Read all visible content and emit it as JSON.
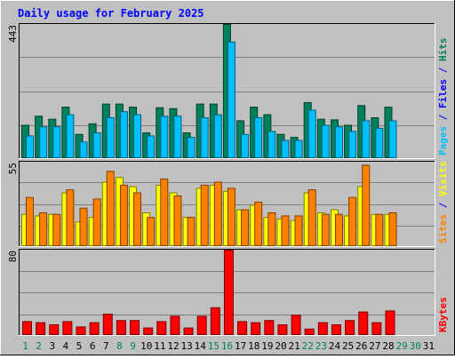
{
  "chart_data": [
    {
      "type": "bar",
      "title": "Daily usage for February 2025",
      "categories": [
        "1",
        "2",
        "3",
        "4",
        "5",
        "6",
        "7",
        "8",
        "9",
        "10",
        "11",
        "12",
        "13",
        "14",
        "15",
        "16",
        "17",
        "18",
        "19",
        "20",
        "21",
        "22",
        "23",
        "24",
        "25",
        "26",
        "27",
        "28",
        "29",
        "30",
        "31"
      ],
      "weekend_days": [
        "1",
        "2",
        "8",
        "9",
        "15",
        "16",
        "22",
        "23",
        "29",
        "30"
      ],
      "ylabel_parts": [
        "Pages",
        "Files",
        "Hits"
      ],
      "y_tick_label": "443",
      "ylim": [
        0,
        443
      ],
      "series": [
        {
          "name": "Hits",
          "values": [
            110,
            140,
            130,
            170,
            80,
            115,
            180,
            180,
            170,
            85,
            168,
            165,
            85,
            180,
            180,
            443,
            125,
            170,
            145,
            80,
            70,
            185,
            130,
            128,
            110,
            175,
            135,
            170,
            0,
            0,
            0
          ]
        },
        {
          "name": "Files",
          "values": [
            75,
            105,
            105,
            145,
            55,
            85,
            135,
            155,
            145,
            75,
            140,
            140,
            70,
            135,
            145,
            385,
            80,
            135,
            90,
            60,
            60,
            160,
            110,
            105,
            90,
            125,
            100,
            125,
            0,
            0,
            0
          ]
        },
        {
          "name": "Pages",
          "values": [
            0,
            0,
            0,
            0,
            0,
            0,
            0,
            0,
            0,
            0,
            0,
            0,
            0,
            0,
            0,
            0,
            0,
            0,
            0,
            0,
            0,
            0,
            0,
            0,
            0,
            0,
            0,
            0,
            0,
            0,
            0
          ]
        }
      ]
    },
    {
      "type": "bar",
      "ylabel_parts": [
        "Sites",
        "Visits"
      ],
      "y_tick_label": "55",
      "ylim": [
        0,
        55
      ],
      "series": [
        {
          "name": "Visits",
          "values": [
            21,
            20,
            21,
            35,
            16,
            19,
            42,
            45,
            39,
            22,
            40,
            35,
            19,
            38,
            40,
            36,
            24,
            27,
            19,
            18,
            17,
            35,
            22,
            24,
            20,
            39,
            21,
            21,
            0,
            0,
            0
          ]
        },
        {
          "name": "Sites",
          "values": [
            32,
            22,
            21,
            37,
            25,
            31,
            49,
            40,
            35,
            19,
            44,
            33,
            19,
            40,
            42,
            38,
            24,
            29,
            22,
            20,
            20,
            37,
            21,
            21,
            32,
            53,
            21,
            22,
            0,
            0,
            0
          ]
        }
      ]
    },
    {
      "type": "bar",
      "ylabel_parts": [
        "KBytes"
      ],
      "y_tick_label": "80",
      "ylim": [
        0,
        80
      ],
      "series": [
        {
          "name": "KBytes",
          "values": [
            13,
            12,
            10,
            13,
            8,
            12,
            20,
            14,
            14,
            7,
            13,
            18,
            7,
            18,
            26,
            80,
            13,
            12,
            14,
            10,
            19,
            6,
            12,
            10,
            14,
            22,
            12,
            23,
            0,
            0,
            0
          ]
        }
      ]
    }
  ],
  "colors": {
    "background": "#c0c0c0",
    "grid": "#808080",
    "title": "#0000ff",
    "label": "#000000",
    "weekend_label": "#00805c",
    "hits_face": "#00805c",
    "hits_edge": "#003f2e",
    "files_face": "#00c0ff",
    "files_edge": "#00607f",
    "pages_face": "#00e0d0",
    "sites_face": "#ff8000",
    "sites_edge": "#7f4000",
    "visits_face": "#ffff00",
    "visits_edge": "#7f7f00",
    "kbytes_face": "#ff0000",
    "kbytes_edge": "#7f0000",
    "separator": "#0000ff"
  }
}
